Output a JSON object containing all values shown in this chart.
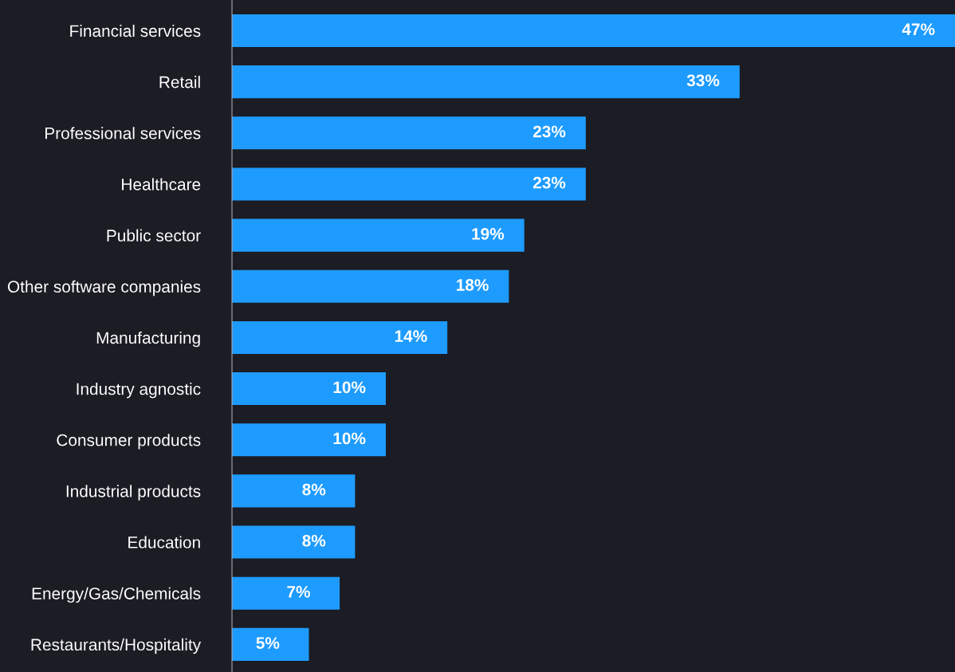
{
  "chart_data": {
    "type": "bar",
    "orientation": "horizontal",
    "categories": [
      "Financial services",
      "Retail",
      "Professional services",
      "Healthcare",
      "Public sector",
      "Other software companies",
      "Manufacturing",
      "Industry agnostic",
      "Consumer products",
      "Industrial products",
      "Education",
      "Energy/Gas/Chemicals",
      "Restaurants/Hospitality"
    ],
    "values": [
      47,
      33,
      23,
      23,
      19,
      18,
      14,
      10,
      10,
      8,
      8,
      7,
      5
    ],
    "value_labels": [
      "47%",
      "33%",
      "23%",
      "23%",
      "19%",
      "18%",
      "14%",
      "10%",
      "10%",
      "8%",
      "8%",
      "7%",
      "5%"
    ],
    "color": "#1e9bff",
    "xlim": [
      0,
      47
    ],
    "tick_labels": "y",
    "grid": false,
    "legend": false
  }
}
